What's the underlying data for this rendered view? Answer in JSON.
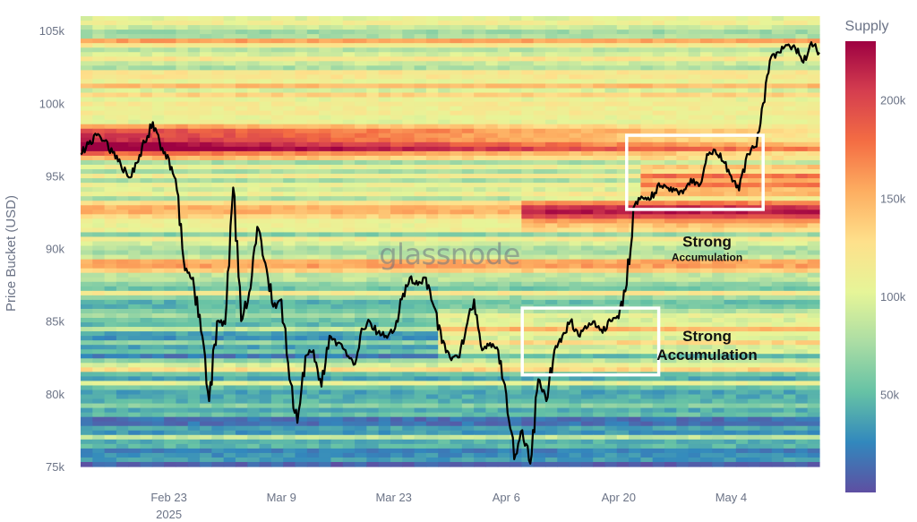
{
  "chart_data": {
    "type": "heatmap",
    "watermark": "glassnode",
    "yaxis": {
      "label": "Price Bucket (USD)",
      "range": [
        75000,
        106000
      ],
      "ticks": [
        {
          "value": 75000,
          "label": "75k"
        },
        {
          "value": 80000,
          "label": "80k"
        },
        {
          "value": 85000,
          "label": "85k"
        },
        {
          "value": 90000,
          "label": "90k"
        },
        {
          "value": 95000,
          "label": "95k"
        },
        {
          "value": 100000,
          "label": "100k"
        },
        {
          "value": 105000,
          "label": "105k"
        }
      ]
    },
    "xaxis": {
      "start": "2025-02-12",
      "end": "2025-05-15",
      "ticks": [
        {
          "date": "2025-02-23",
          "label": "Feb 23",
          "sublabel": "2025"
        },
        {
          "date": "2025-03-09",
          "label": "Mar 9",
          "sublabel": ""
        },
        {
          "date": "2025-03-23",
          "label": "Mar 23",
          "sublabel": ""
        },
        {
          "date": "2025-04-06",
          "label": "Apr 6",
          "sublabel": ""
        },
        {
          "date": "2025-04-20",
          "label": "Apr 20",
          "sublabel": ""
        },
        {
          "date": "2025-05-04",
          "label": "May 4",
          "sublabel": ""
        }
      ]
    },
    "colorbar": {
      "title": "Supply",
      "range": [
        0,
        230000
      ],
      "ticks": [
        {
          "value": 50000,
          "label": "50k"
        },
        {
          "value": 100000,
          "label": "100k"
        },
        {
          "value": 150000,
          "label": "150k"
        },
        {
          "value": 200000,
          "label": "200k"
        }
      ],
      "colorscale": [
        "#5e4fa2",
        "#3288bd",
        "#66c2a5",
        "#abdda4",
        "#e6f598",
        "#fee08b",
        "#fdae61",
        "#f46d43",
        "#d53e4f",
        "#9e0142"
      ]
    },
    "price_series": [
      [
        "2025-02-12",
        96500
      ],
      [
        "2025-02-13",
        97200
      ],
      [
        "2025-02-14",
        97800
      ],
      [
        "2025-02-15",
        97400
      ],
      [
        "2025-02-16",
        96600
      ],
      [
        "2025-02-17",
        95800
      ],
      [
        "2025-02-18",
        94900
      ],
      [
        "2025-02-19",
        95900
      ],
      [
        "2025-02-20",
        97300
      ],
      [
        "2025-02-21",
        98700
      ],
      [
        "2025-02-22",
        96800
      ],
      [
        "2025-02-23",
        96200
      ],
      [
        "2025-02-24",
        94000
      ],
      [
        "2025-02-25",
        88500
      ],
      [
        "2025-02-26",
        88000
      ],
      [
        "2025-02-27",
        84300
      ],
      [
        "2025-02-28",
        79500
      ],
      [
        "2025-03-01",
        85000
      ],
      [
        "2025-03-02",
        84800
      ],
      [
        "2025-03-03",
        94200
      ],
      [
        "2025-03-04",
        85000
      ],
      [
        "2025-03-05",
        87000
      ],
      [
        "2025-03-06",
        91500
      ],
      [
        "2025-03-07",
        89000
      ],
      [
        "2025-03-08",
        86000
      ],
      [
        "2025-03-09",
        86500
      ],
      [
        "2025-03-10",
        81000
      ],
      [
        "2025-03-11",
        78000
      ],
      [
        "2025-03-12",
        82600
      ],
      [
        "2025-03-13",
        83000
      ],
      [
        "2025-03-14",
        80500
      ],
      [
        "2025-03-15",
        84000
      ],
      [
        "2025-03-16",
        83500
      ],
      [
        "2025-03-17",
        83000
      ],
      [
        "2025-03-18",
        82000
      ],
      [
        "2025-03-19",
        84500
      ],
      [
        "2025-03-20",
        85000
      ],
      [
        "2025-03-21",
        84200
      ],
      [
        "2025-03-22",
        84000
      ],
      [
        "2025-03-23",
        84300
      ],
      [
        "2025-03-24",
        86500
      ],
      [
        "2025-03-25",
        88000
      ],
      [
        "2025-03-26",
        87500
      ],
      [
        "2025-03-27",
        88000
      ],
      [
        "2025-03-28",
        86000
      ],
      [
        "2025-03-29",
        83500
      ],
      [
        "2025-03-30",
        82500
      ],
      [
        "2025-03-31",
        82500
      ],
      [
        "2025-04-01",
        84500
      ],
      [
        "2025-04-02",
        86500
      ],
      [
        "2025-04-03",
        83000
      ],
      [
        "2025-04-04",
        83500
      ],
      [
        "2025-04-05",
        83000
      ],
      [
        "2025-04-06",
        80000
      ],
      [
        "2025-04-07",
        75500
      ],
      [
        "2025-04-08",
        77500
      ],
      [
        "2025-04-09",
        75200
      ],
      [
        "2025-04-10",
        81000
      ],
      [
        "2025-04-11",
        79500
      ],
      [
        "2025-04-12",
        83000
      ],
      [
        "2025-04-13",
        84000
      ],
      [
        "2025-04-14",
        85000
      ],
      [
        "2025-04-15",
        84000
      ],
      [
        "2025-04-16",
        84500
      ],
      [
        "2025-04-17",
        85000
      ],
      [
        "2025-04-18",
        84200
      ],
      [
        "2025-04-19",
        85000
      ],
      [
        "2025-04-20",
        85200
      ],
      [
        "2025-04-21",
        87500
      ],
      [
        "2025-04-22",
        93000
      ],
      [
        "2025-04-23",
        93500
      ],
      [
        "2025-04-24",
        93400
      ],
      [
        "2025-04-25",
        94500
      ],
      [
        "2025-04-26",
        94200
      ],
      [
        "2025-04-27",
        94000
      ],
      [
        "2025-04-28",
        93800
      ],
      [
        "2025-04-29",
        94800
      ],
      [
        "2025-04-30",
        94300
      ],
      [
        "2025-05-01",
        96500
      ],
      [
        "2025-05-02",
        96800
      ],
      [
        "2025-05-03",
        96000
      ],
      [
        "2025-05-04",
        95000
      ],
      [
        "2025-05-05",
        94000
      ],
      [
        "2025-05-06",
        96500
      ],
      [
        "2025-05-07",
        97000
      ],
      [
        "2025-05-08",
        100000
      ],
      [
        "2025-05-09",
        103200
      ],
      [
        "2025-05-10",
        103500
      ],
      [
        "2025-05-11",
        104000
      ],
      [
        "2025-05-12",
        103800
      ],
      [
        "2025-05-13",
        102800
      ],
      [
        "2025-05-14",
        104200
      ],
      [
        "2025-05-15",
        103500
      ]
    ],
    "annotations": [
      {
        "lines": [
          "Strong",
          "Accumulation"
        ],
        "box": {
          "x0": "2025-04-21",
          "x1": "2025-05-08",
          "y0": 92700,
          "y1": 97800
        },
        "label_date": "2025-05-01",
        "label_price": 90000,
        "sizes": [
          17,
          12
        ]
      },
      {
        "lines": [
          "Strong",
          "Accumulation"
        ],
        "box": {
          "x0": "2025-04-08",
          "x1": "2025-04-25",
          "y0": 81300,
          "y1": 85900
        },
        "label_date": "2025-05-01",
        "label_price": 83500,
        "sizes": [
          17,
          17
        ]
      }
    ]
  }
}
